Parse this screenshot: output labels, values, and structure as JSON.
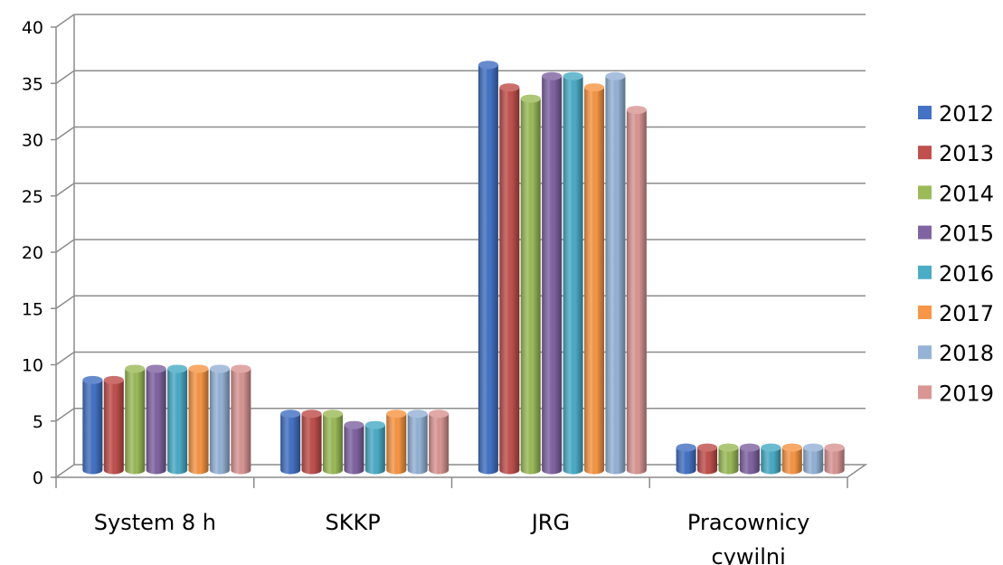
{
  "chart_data": {
    "type": "bar",
    "style": "3d-cylinder",
    "categories": [
      "System 8 h",
      "SKKP",
      "JRG",
      "Pracownicy cywilni"
    ],
    "series": [
      {
        "name": "2012",
        "color": "#4472C4",
        "values": [
          8,
          5,
          36,
          2
        ]
      },
      {
        "name": "2013",
        "color": "#C0504D",
        "values": [
          8,
          5,
          34,
          2
        ]
      },
      {
        "name": "2014",
        "color": "#9BBB59",
        "values": [
          9,
          5,
          33,
          2
        ]
      },
      {
        "name": "2015",
        "color": "#8064A2",
        "values": [
          9,
          4,
          35,
          2
        ]
      },
      {
        "name": "2016",
        "color": "#4BACC6",
        "values": [
          9,
          4,
          35,
          2
        ]
      },
      {
        "name": "2017",
        "color": "#F79646",
        "values": [
          9,
          5,
          34,
          2
        ]
      },
      {
        "name": "2018",
        "color": "#95B3D7",
        "values": [
          9,
          5,
          35,
          2
        ]
      },
      {
        "name": "2019",
        "color": "#D99694",
        "values": [
          9,
          5,
          32,
          2
        ]
      }
    ],
    "title": "",
    "xlabel": "",
    "ylabel": "",
    "ylim": [
      0,
      40
    ],
    "yticks": [
      "0",
      "5",
      "10",
      "15",
      "20",
      "25",
      "30",
      "35",
      "40"
    ],
    "grid": true,
    "legend": "right"
  }
}
